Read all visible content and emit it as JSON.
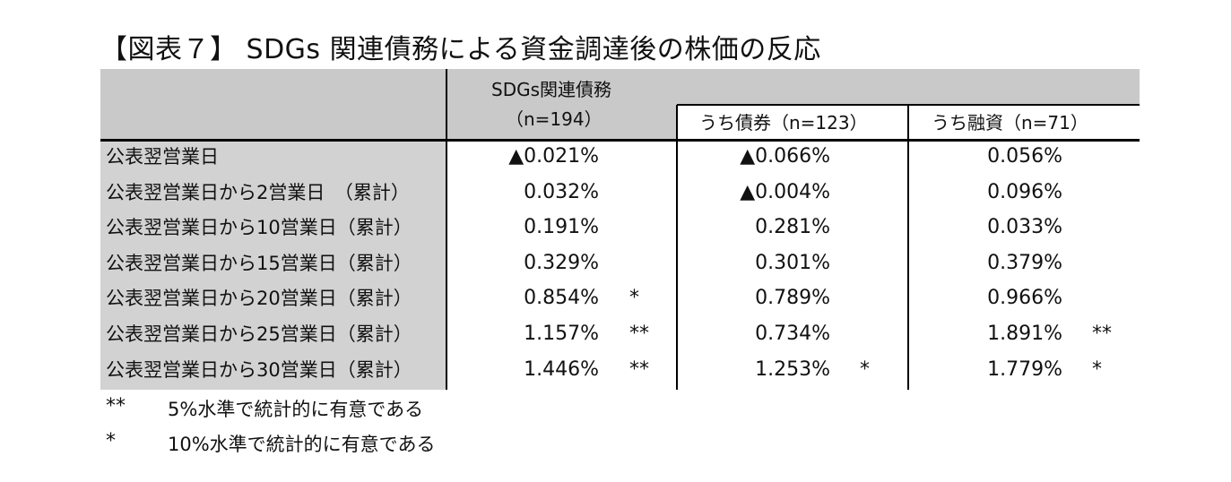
{
  "title": "【図表７】 SDGs 関連債務による資金調達後の株価の反応",
  "header": {
    "main_col": "SDGs関連債務",
    "main_n": "（n=194）",
    "sub1": "うち債券（n=123）",
    "sub2": "うち融資（n=71）"
  },
  "rows": [
    {
      "label": "公表翌営業日",
      "v1": "▲0.021%",
      "s1": "",
      "v2": "▲0.066%",
      "s2": "",
      "v3": "0.056%",
      "s3": ""
    },
    {
      "label": "公表翌営業日から2営業日　（累計）",
      "v1": "0.032%",
      "s1": "",
      "v2": "▲0.004%",
      "s2": "",
      "v3": "0.096%",
      "s3": ""
    },
    {
      "label": "公表翌営業日から10営業日（累計）",
      "v1": "0.191%",
      "s1": "",
      "v2": "0.281%",
      "s2": "",
      "v3": "0.033%",
      "s3": ""
    },
    {
      "label": "公表翌営業日から15営業日（累計）",
      "v1": "0.329%",
      "s1": "",
      "v2": "0.301%",
      "s2": "",
      "v3": "0.379%",
      "s3": ""
    },
    {
      "label": "公表翌営業日から20営業日（累計）",
      "v1": "0.854%",
      "s1": "*",
      "v2": "0.789%",
      "s2": "",
      "v3": "0.966%",
      "s3": ""
    },
    {
      "label": "公表翌営業日から25営業日（累計）",
      "v1": "1.157%",
      "s1": "**",
      "v2": "0.734%",
      "s2": "",
      "v3": "1.891%",
      "s3": "**"
    },
    {
      "label": "公表翌営業日から30営業日（累計）",
      "v1": "1.446%",
      "s1": "**",
      "v2": "1.253%",
      "s2": "*",
      "v3": "1.779%",
      "s3": "*"
    }
  ],
  "notes": [
    {
      "mark": "**",
      "text": "5%水準で統計的に有意である"
    },
    {
      "mark": "*",
      "text": "10%水準で統計的に有意である"
    }
  ],
  "colors": {
    "header_bg": "#c9c9c9",
    "label_bg": "#d2d2d2",
    "border": "#000000"
  }
}
